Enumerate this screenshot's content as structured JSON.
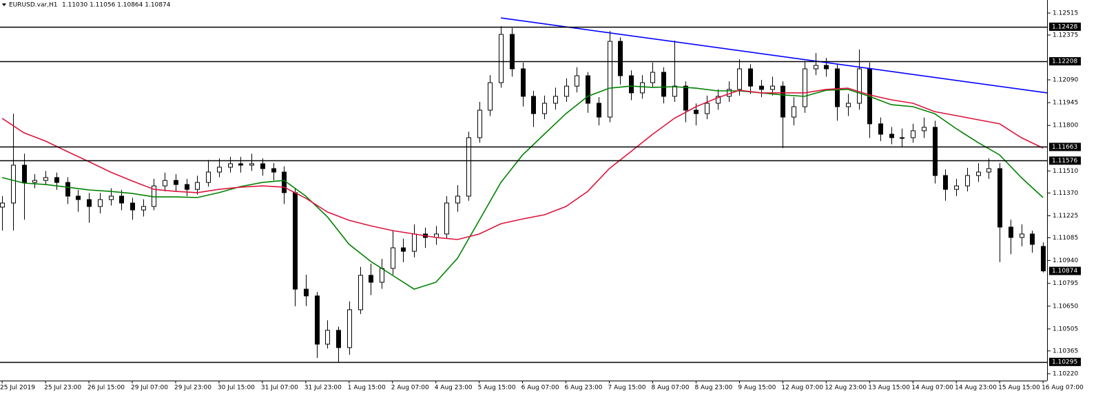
{
  "chart_data": {
    "type": "candlestick",
    "title": "EURUSD.var,H1",
    "subtitle": "1.11030 1.11056 1.10864 1.10874",
    "x": [
      0,
      4,
      8,
      12,
      16,
      20,
      24,
      28,
      32,
      36,
      40,
      44,
      48,
      52,
      56,
      60,
      64,
      68,
      72,
      76,
      80,
      84,
      88,
      92,
      96,
      100,
      104,
      108,
      112,
      116,
      120,
      124,
      128,
      132,
      136,
      140,
      144,
      148,
      152,
      156,
      160,
      164,
      168,
      172,
      176,
      180,
      184,
      188,
      192,
      196,
      200,
      204,
      208,
      212,
      216,
      220,
      224,
      228,
      232,
      236,
      240,
      244,
      248,
      252,
      256,
      260,
      264,
      268,
      272,
      276,
      280,
      284,
      288,
      292,
      296,
      300,
      304,
      308,
      312,
      316,
      320,
      324,
      328,
      332,
      336,
      340,
      344,
      348,
      352,
      356,
      360,
      364,
      368,
      372,
      376,
      380,
      384
    ],
    "open": [
      1.1128,
      1.11306,
      1.11547,
      1.11437,
      1.1145,
      1.11468,
      1.11437,
      1.1135,
      1.11328,
      1.11284,
      1.11328,
      1.1135,
      1.11306,
      1.11262,
      1.11284,
      1.11415,
      1.1145,
      1.11424,
      1.11393,
      1.11437,
      1.11503,
      1.11534,
      1.11556,
      1.11547,
      1.11556,
      1.11525,
      1.11503,
      1.11372,
      1.10758,
      1.10715,
      1.10408,
      1.10496,
      1.10386,
      1.10627,
      1.10846,
      1.10802,
      1.1089,
      1.11021,
      1.10999,
      1.11109,
      1.11087,
      1.11109,
      1.11306,
      1.1135,
      1.11722,
      1.11897,
      1.12072,
      1.12379,
      1.1216,
      1.11985,
      1.11875,
      1.11941,
      1.11985,
      1.1205,
      1.12116,
      1.11941,
      1.11853,
      1.12335,
      1.12116,
      1.12007,
      1.12072,
      1.12138,
      1.11985,
      1.1205,
      1.11897,
      1.11875,
      1.11941,
      1.11985,
      1.12029,
      1.1216,
      1.1205,
      1.12029,
      1.1205,
      1.11853,
      1.11919,
      1.1216,
      1.12182,
      1.1216,
      1.11919,
      1.11941,
      1.1216,
      1.1181,
      1.11744,
      1.11722,
      1.11722,
      1.11766,
      1.11788,
      1.11481,
      1.11393,
      1.11415,
      1.11481,
      1.11503,
      1.11525,
      1.11153,
      1.11087,
      1.11109,
      1.1103
    ],
    "high": [
      1.1135,
      1.11875,
      1.1162,
      1.1149,
      1.1151,
      1.115,
      1.1147,
      1.1139,
      1.1137,
      1.1137,
      1.114,
      1.1139,
      1.1134,
      1.1133,
      1.1146,
      1.115,
      1.1149,
      1.1146,
      1.1148,
      1.1158,
      1.1159,
      1.116,
      1.116,
      1.1162,
      1.1159,
      1.1156,
      1.1154,
      1.114,
      1.1085,
      1.1074,
      1.1056,
      1.1052,
      1.1068,
      1.109,
      1.1092,
      1.1095,
      1.1113,
      1.1108,
      1.1117,
      1.1115,
      1.1116,
      1.1135,
      1.1142,
      1.1176,
      1.1195,
      1.1212,
      1.12431,
      1.1242,
      1.122,
      1.1202,
      1.1199,
      1.1204,
      1.121,
      1.1217,
      1.1214,
      1.1198,
      1.12401,
      1.1236,
      1.1215,
      1.1212,
      1.122,
      1.1217,
      1.1234,
      1.1208,
      1.1194,
      1.1199,
      1.1203,
      1.1208,
      1.1222,
      1.1219,
      1.1209,
      1.1211,
      1.1208,
      1.1198,
      1.1221,
      1.1226,
      1.1223,
      1.1219,
      1.12,
      1.12283,
      1.122,
      1.1185,
      1.1179,
      1.1178,
      1.1181,
      1.1185,
      1.1183,
      1.1152,
      1.1146,
      1.1153,
      1.1156,
      1.1159,
      1.1156,
      1.112,
      1.1117,
      1.1113,
      1.11056
    ],
    "low": [
      1.1113,
      1.11131,
      1.112,
      1.114,
      1.1142,
      1.1139,
      1.113,
      1.1125,
      1.1118,
      1.1124,
      1.1129,
      1.1126,
      1.112,
      1.1122,
      1.1126,
      1.1138,
      1.1138,
      1.1135,
      1.1136,
      1.1141,
      1.1147,
      1.115,
      1.115,
      1.1151,
      1.1148,
      1.1145,
      1.113,
      1.10649,
      1.1065,
      1.1032,
      1.1038,
      1.1029,
      1.1034,
      1.106,
      1.1072,
      1.1076,
      1.1085,
      1.1093,
      1.1096,
      1.1102,
      1.1104,
      1.1108,
      1.1125,
      1.1132,
      1.1169,
      1.1186,
      1.1204,
      1.1211,
      1.1192,
      1.1179,
      1.1184,
      1.119,
      1.1195,
      1.1201,
      1.1188,
      1.118,
      1.1182,
      1.1206,
      1.1196,
      1.1197,
      1.1204,
      1.1194,
      1.1195,
      1.1182,
      1.118,
      1.1184,
      1.119,
      1.1195,
      1.1199,
      1.12,
      1.1198,
      1.1199,
      1.11656,
      1.118,
      1.1188,
      1.1212,
      1.1211,
      1.1183,
      1.1186,
      1.119,
      1.1172,
      1.117,
      1.1168,
      1.1166,
      1.1169,
      1.1172,
      1.1143,
      1.1132,
      1.1135,
      1.1138,
      1.1144,
      1.1146,
      1.1093,
      1.1098,
      1.1103,
      1.1099,
      1.10864
    ],
    "close": [
      1.11306,
      1.11547,
      1.11437,
      1.1145,
      1.11468,
      1.11437,
      1.1135,
      1.11328,
      1.11284,
      1.11328,
      1.1135,
      1.11306,
      1.11262,
      1.11284,
      1.11415,
      1.1145,
      1.11424,
      1.11393,
      1.11437,
      1.11503,
      1.11534,
      1.11556,
      1.11547,
      1.11556,
      1.11525,
      1.11503,
      1.11372,
      1.10758,
      1.10715,
      1.10408,
      1.10496,
      1.10386,
      1.10627,
      1.10846,
      1.10802,
      1.1089,
      1.11021,
      1.10999,
      1.11109,
      1.11087,
      1.11109,
      1.11306,
      1.1135,
      1.11722,
      1.11897,
      1.12072,
      1.12379,
      1.1216,
      1.11985,
      1.11875,
      1.11941,
      1.11985,
      1.1205,
      1.12116,
      1.11941,
      1.11853,
      1.12335,
      1.12116,
      1.12007,
      1.12072,
      1.12138,
      1.11985,
      1.1205,
      1.11897,
      1.11875,
      1.11941,
      1.11985,
      1.12029,
      1.1216,
      1.1205,
      1.12029,
      1.1205,
      1.11853,
      1.11919,
      1.1216,
      1.12182,
      1.1216,
      1.11919,
      1.11941,
      1.1216,
      1.1181,
      1.11744,
      1.11722,
      1.11722,
      1.11766,
      1.11788,
      1.11481,
      1.11393,
      1.11415,
      1.11481,
      1.11503,
      1.11525,
      1.11153,
      1.11087,
      1.11109,
      1.11043,
      1.10874
    ],
    "up_color": "#ffffff",
    "down_color": "#000000",
    "line_x": [
      0,
      8,
      16,
      24,
      32,
      40,
      48,
      56,
      64,
      72,
      80,
      88,
      96,
      104,
      112,
      120,
      128,
      136,
      144,
      152,
      160,
      168,
      176,
      184,
      192,
      200,
      208,
      216,
      224,
      232,
      240,
      248,
      256,
      264,
      272,
      280,
      288,
      296,
      304,
      312,
      320,
      328,
      336,
      344,
      352,
      360,
      368,
      376,
      384
    ],
    "lines": [
      {
        "color": "#008000",
        "values": [
          1.11468,
          1.11433,
          1.11424,
          1.11407,
          1.11389,
          1.1138,
          1.11367,
          1.11345,
          1.11345,
          1.11341,
          1.11372,
          1.11411,
          1.11437,
          1.1145,
          1.1135,
          1.11218,
          1.11043,
          1.10934,
          1.10846,
          1.10758,
          1.10802,
          1.10955,
          1.11196,
          1.11437,
          1.11612,
          1.11744,
          1.11875,
          1.11985,
          1.12037,
          1.1205,
          1.12042,
          1.12046,
          1.12037,
          1.1202,
          1.1202,
          1.12007,
          1.11994,
          1.11985,
          1.12024,
          1.12029,
          1.11985,
          1.11932,
          1.11919,
          1.11875,
          1.11779,
          1.11691,
          1.11612,
          1.11468,
          1.11341
        ]
      },
      {
        "color": "#dc143c",
        "values": [
          1.11845,
          1.11753,
          1.117,
          1.11634,
          1.11569,
          1.11503,
          1.11446,
          1.11393,
          1.1138,
          1.11372,
          1.11393,
          1.11407,
          1.11415,
          1.11407,
          1.11337,
          1.11249,
          1.11196,
          1.11161,
          1.11131,
          1.11109,
          1.11087,
          1.11074,
          1.11109,
          1.11174,
          1.11205,
          1.11231,
          1.11284,
          1.1138,
          1.11525,
          1.11634,
          1.11744,
          1.11845,
          1.11919,
          1.11976,
          1.12024,
          1.12007,
          1.12007,
          1.12007,
          1.12029,
          1.12037,
          1.11994,
          1.11963,
          1.11941,
          1.11888,
          1.11862,
          1.11836,
          1.1181,
          1.11722,
          1.11656
        ]
      }
    ],
    "trendline": {
      "color": "#0000ff",
      "x": [
        184,
        385.5
      ],
      "values": [
        1.12484,
        1.12007
      ]
    },
    "levels": [
      1.12428,
      1.12208,
      1.11663,
      1.11576,
      1.10295
    ],
    "current_price": 1.10874,
    "xlim": [
      -0.8,
      385.5
    ],
    "ylim": [
      1.10176,
      1.12598
    ],
    "yticks": [
      1.12515,
      1.12375,
      {
        "value": 1.1209,
        "label": "1.12090"
      },
      1.11945,
      {
        "value": 1.118,
        "label": "1.11800"
      },
      {
        "value": 1.1151,
        "label": "1.11510"
      },
      {
        "value": 1.1137,
        "label": "1.11370"
      },
      1.11225,
      1.11085,
      {
        "value": 1.1094,
        "label": "1.10940"
      },
      1.10795,
      {
        "value": 1.1065,
        "label": "1.10650"
      },
      1.10505,
      1.10365,
      {
        "value": 1.1022,
        "label": "1.10220"
      }
    ],
    "xticks": [
      {
        "value": 0,
        "label": "25 Jul 2019"
      },
      {
        "value": 16,
        "label": "25 Jul 23:00"
      },
      {
        "value": 32,
        "label": "26 Jul 15:00"
      },
      {
        "value": 48,
        "label": "29 Jul 07:00"
      },
      {
        "value": 64,
        "label": "29 Jul 23:00"
      },
      {
        "value": 80,
        "label": "30 Jul 15:00"
      },
      {
        "value": 96,
        "label": "31 Jul 07:00"
      },
      {
        "value": 112,
        "label": "31 Jul 23:00"
      },
      {
        "value": 128,
        "label": "1 Aug 15:00"
      },
      {
        "value": 144,
        "label": "2 Aug 07:00"
      },
      {
        "value": 160,
        "label": "4 Aug 23:00"
      },
      {
        "value": 176,
        "label": "5 Aug 15:00"
      },
      {
        "value": 192,
        "label": "6 Aug 07:00"
      },
      {
        "value": 208,
        "label": "6 Aug 23:00"
      },
      {
        "value": 224,
        "label": "7 Aug 15:00"
      },
      {
        "value": 240,
        "label": "8 Aug 07:00"
      },
      {
        "value": 256,
        "label": "8 Aug 23:00"
      },
      {
        "value": 272,
        "label": "9 Aug 15:00"
      },
      {
        "value": 288,
        "label": "12 Aug 07:00"
      },
      {
        "value": 304,
        "label": "12 Aug 23:00"
      },
      {
        "value": 320,
        "label": "13 Aug 15:00"
      },
      {
        "value": 336,
        "label": "14 Aug 07:00"
      },
      {
        "value": 352,
        "label": "14 Aug 23:00"
      },
      {
        "value": 368,
        "label": "15 Aug 15:00"
      },
      {
        "value": 384,
        "label": "16 Aug 07:00"
      }
    ]
  }
}
